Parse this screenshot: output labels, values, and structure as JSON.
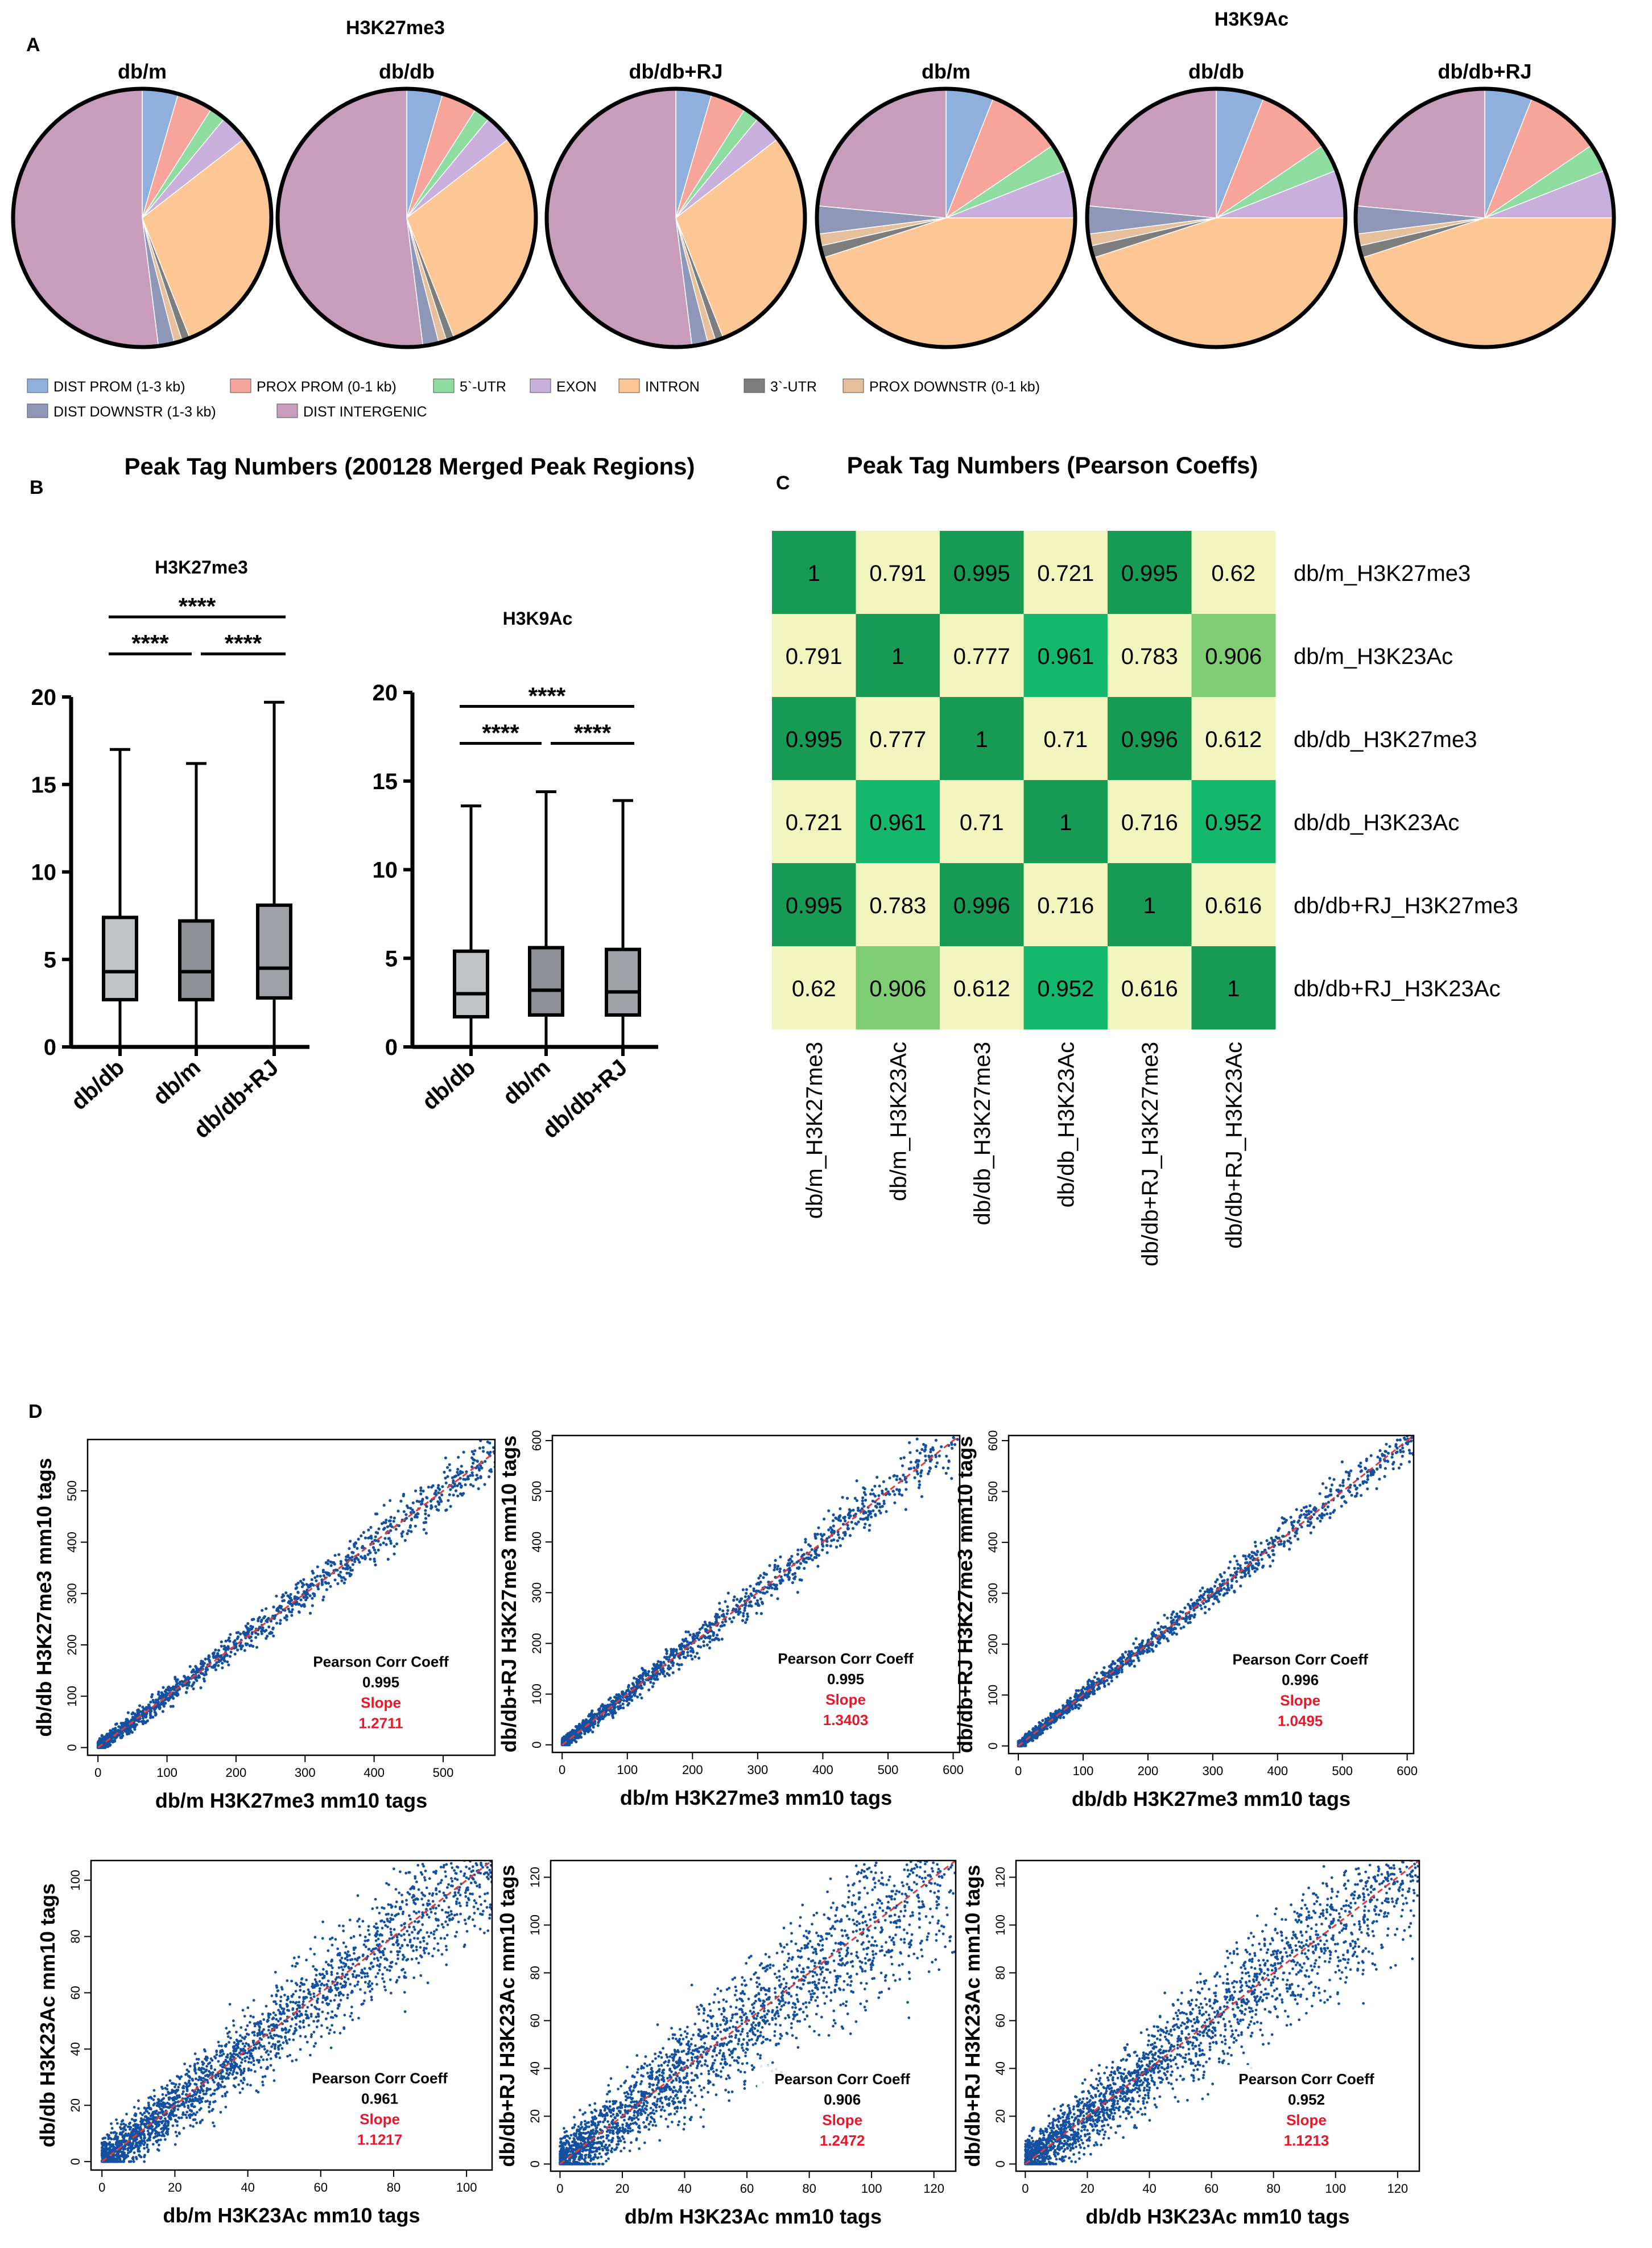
{
  "panels": {
    "a_letter": "A",
    "b_letter": "B",
    "c_letter": "C",
    "d_letter": "D"
  },
  "pie_section": {
    "group_titles": [
      "H3K27me3",
      "H3K9Ac"
    ],
    "legend": [
      {
        "label": "DIST PROM (1-3 kb)",
        "color": "#8fb0dc"
      },
      {
        "label": "PROX PROM (0-1 kb)",
        "color": "#f7a49a"
      },
      {
        "label": "5`-UTR",
        "color": "#8fdca0"
      },
      {
        "label": "EXON",
        "color": "#c9b0dc"
      },
      {
        "label": "INTRON",
        "color": "#fcc794"
      },
      {
        "label": "3`-UTR",
        "color": "#7d7d7d"
      },
      {
        "label": "PROX DOWNSTR (0-1 kb)",
        "color": "#e6bf9c"
      },
      {
        "label": "DIST DOWNSTR (1-3 kb)",
        "color": "#8f97b8"
      },
      {
        "label": "DIST INTERGENIC",
        "color": "#c79dbb"
      }
    ]
  },
  "box_section": {
    "title": "Peak Tag Numbers (200128 Merged Peak Regions)",
    "significance": "****"
  },
  "heatmap_section": {
    "title": "Peak Tag Numbers (Pearson Coeffs)"
  },
  "scatter_section": {
    "stat_label": "Pearson Corr Coeff",
    "slope_label": "Slope"
  },
  "chart_data": [
    {
      "type": "pie",
      "title": "db/m",
      "group": "H3K27me3",
      "categories": [
        "DIST PROM (1-3 kb)",
        "PROX PROM (0-1 kb)",
        "5`-UTR",
        "EXON",
        "INTRON",
        "3`-UTR",
        "PROX DOWNSTR (0-1 kb)",
        "DIST DOWNSTR (1-3 kb)",
        "DIST INTERGENIC"
      ],
      "values": [
        4.5,
        4.5,
        2.0,
        3.5,
        29.5,
        1.0,
        1.0,
        2.0,
        52.0
      ]
    },
    {
      "type": "pie",
      "title": "db/db",
      "group": "H3K27me3",
      "categories": [
        "DIST PROM (1-3 kb)",
        "PROX PROM (0-1 kb)",
        "5`-UTR",
        "EXON",
        "INTRON",
        "3`-UTR",
        "PROX DOWNSTR (0-1 kb)",
        "DIST DOWNSTR (1-3 kb)",
        "DIST INTERGENIC"
      ],
      "values": [
        4.5,
        4.5,
        2.0,
        3.5,
        29.5,
        1.0,
        1.0,
        2.0,
        52.0
      ]
    },
    {
      "type": "pie",
      "title": "db/db+RJ",
      "group": "H3K27me3",
      "categories": [
        "DIST PROM (1-3 kb)",
        "PROX PROM (0-1 kb)",
        "5`-UTR",
        "EXON",
        "INTRON",
        "3`-UTR",
        "PROX DOWNSTR (0-1 kb)",
        "DIST DOWNSTR (1-3 kb)",
        "DIST INTERGENIC"
      ],
      "values": [
        4.5,
        4.5,
        2.0,
        3.5,
        29.5,
        1.0,
        1.0,
        2.0,
        52.0
      ]
    },
    {
      "type": "pie",
      "title": "db/m",
      "group": "H3K9Ac",
      "categories": [
        "DIST PROM (1-3 kb)",
        "PROX PROM (0-1 kb)",
        "5`-UTR",
        "EXON",
        "INTRON",
        "3`-UTR",
        "PROX DOWNSTR (0-1 kb)",
        "DIST DOWNSTR (1-3 kb)",
        "DIST INTERGENIC"
      ],
      "values": [
        6.0,
        9.5,
        3.5,
        6.0,
        45.0,
        1.5,
        1.5,
        3.5,
        23.5
      ]
    },
    {
      "type": "pie",
      "title": "db/db",
      "group": "H3K9Ac",
      "categories": [
        "DIST PROM (1-3 kb)",
        "PROX PROM (0-1 kb)",
        "5`-UTR",
        "EXON",
        "INTRON",
        "3`-UTR",
        "PROX DOWNSTR (0-1 kb)",
        "DIST DOWNSTR (1-3 kb)",
        "DIST INTERGENIC"
      ],
      "values": [
        6.0,
        9.5,
        3.5,
        6.0,
        45.0,
        1.5,
        1.5,
        3.5,
        23.5
      ]
    },
    {
      "type": "pie",
      "title": "db/db+RJ",
      "group": "H3K9Ac",
      "categories": [
        "DIST PROM (1-3 kb)",
        "PROX PROM (0-1 kb)",
        "5`-UTR",
        "EXON",
        "INTRON",
        "3`-UTR",
        "PROX DOWNSTR (0-1 kb)",
        "DIST DOWNSTR (1-3 kb)",
        "DIST INTERGENIC"
      ],
      "values": [
        6.0,
        9.5,
        3.5,
        6.0,
        45.0,
        1.5,
        1.5,
        3.5,
        23.5
      ]
    },
    {
      "type": "box",
      "title": "H3K27me3",
      "categories": [
        "db/db",
        "db/m",
        "db/db+RJ"
      ],
      "series": [
        {
          "min": 0,
          "q1": 2.7,
          "median": 4.3,
          "q3": 7.4,
          "max": 17.0
        },
        {
          "min": 0,
          "q1": 2.7,
          "median": 4.3,
          "q3": 7.2,
          "max": 16.2
        },
        {
          "min": 0,
          "q1": 2.8,
          "median": 4.5,
          "q3": 8.1,
          "max": 19.7
        }
      ],
      "yticks": [
        0,
        5,
        10,
        15,
        20
      ],
      "ylim": [
        0,
        20
      ],
      "comparisons": [
        [
          1,
          2
        ],
        [
          2,
          3
        ],
        [
          1,
          3
        ]
      ]
    },
    {
      "type": "box",
      "title": "H3K9Ac",
      "categories": [
        "db/db",
        "db/m",
        "db/db+RJ"
      ],
      "series": [
        {
          "min": 0,
          "q1": 1.7,
          "median": 3.0,
          "q3": 5.4,
          "max": 13.6
        },
        {
          "min": 0,
          "q1": 1.8,
          "median": 3.2,
          "q3": 5.6,
          "max": 14.4
        },
        {
          "min": 0,
          "q1": 1.8,
          "median": 3.1,
          "q3": 5.5,
          "max": 13.9
        }
      ],
      "yticks": [
        0,
        5,
        10,
        15,
        20
      ],
      "ylim": [
        0,
        20
      ],
      "comparisons": [
        [
          1,
          2
        ],
        [
          2,
          3
        ],
        [
          1,
          3
        ]
      ]
    },
    {
      "type": "heatmap",
      "labels": [
        "db/m_H3K27me3",
        "db/m_H3K23Ac",
        "db/db_H3K27me3",
        "db/db_H3K23Ac",
        "db/db+RJ_H3K27me3",
        "db/db+RJ_H3K23Ac"
      ],
      "values": [
        [
          1,
          0.791,
          0.995,
          0.721,
          0.995,
          0.62
        ],
        [
          0.791,
          1,
          0.777,
          0.961,
          0.783,
          0.906
        ],
        [
          0.995,
          0.777,
          1,
          0.71,
          0.996,
          0.612
        ],
        [
          0.721,
          0.961,
          0.71,
          1,
          0.716,
          0.952
        ],
        [
          0.995,
          0.783,
          0.996,
          0.716,
          1,
          0.616
        ],
        [
          0.62,
          0.906,
          0.612,
          0.952,
          0.616,
          1
        ]
      ],
      "colors": {
        "high": "#169a54",
        "mid": "#14b86c",
        "low": "#7fcd72",
        "bg": "#f3f5bf"
      }
    },
    {
      "type": "scatter",
      "xlabel": "db/m H3K27me3 mm10 tags",
      "ylabel": "db/db H3K27me3 mm10 tags",
      "xticks": [
        0,
        100,
        200,
        300,
        400,
        500
      ],
      "yticks": [
        0,
        100,
        200,
        300,
        400,
        500
      ],
      "xlim": [
        -15,
        575
      ],
      "ylim": [
        -15,
        600
      ],
      "pearson": "0.995",
      "slope": "1.2711"
    },
    {
      "type": "scatter",
      "xlabel": "db/m H3K27me3 mm10 tags",
      "ylabel": "db/db+RJ H3K27me3 mm10 tags",
      "xticks": [
        0,
        100,
        200,
        300,
        400,
        500,
        600
      ],
      "yticks": [
        0,
        100,
        200,
        300,
        400,
        500,
        600
      ],
      "xlim": [
        -15,
        610
      ],
      "ylim": [
        -15,
        610
      ],
      "pearson": "0.995",
      "slope": "1.3403"
    },
    {
      "type": "scatter",
      "xlabel": "db/db H3K27me3 mm10 tags",
      "ylabel": "db/db+RJ H3K27me3 mm10 tags",
      "xticks": [
        0,
        100,
        200,
        300,
        400,
        500,
        600
      ],
      "yticks": [
        0,
        100,
        200,
        300,
        400,
        500,
        600
      ],
      "xlim": [
        -15,
        610
      ],
      "ylim": [
        -15,
        610
      ],
      "pearson": "0.996",
      "slope": "1.0495"
    },
    {
      "type": "scatter",
      "xlabel": "db/m H3K23Ac mm10 tags",
      "ylabel": "db/db H3K23Ac mm10 tags",
      "xticks": [
        0,
        20,
        40,
        60,
        80,
        100
      ],
      "yticks": [
        0,
        20,
        40,
        60,
        80,
        100
      ],
      "xlim": [
        -3,
        107
      ],
      "ylim": [
        -3,
        107
      ],
      "pearson": "0.961",
      "slope": "1.1217"
    },
    {
      "type": "scatter",
      "xlabel": "db/m H3K23Ac mm10 tags",
      "ylabel": "db/db+RJ H3K23Ac mm10 tags",
      "xticks": [
        0,
        20,
        40,
        60,
        80,
        100,
        120
      ],
      "yticks": [
        0,
        20,
        40,
        60,
        80,
        100,
        120
      ],
      "xlim": [
        -3,
        127
      ],
      "ylim": [
        -3,
        127
      ],
      "pearson": "0.906",
      "slope": "1.2472"
    },
    {
      "type": "scatter",
      "xlabel": "db/db H3K23Ac mm10 tags",
      "ylabel": "db/db+RJ H3K23Ac mm10 tags",
      "xticks": [
        0,
        20,
        40,
        60,
        80,
        100,
        120
      ],
      "yticks": [
        0,
        20,
        40,
        60,
        80,
        100,
        120
      ],
      "xlim": [
        -3,
        127
      ],
      "ylim": [
        -3,
        127
      ],
      "pearson": "0.952",
      "slope": "1.1213"
    }
  ]
}
